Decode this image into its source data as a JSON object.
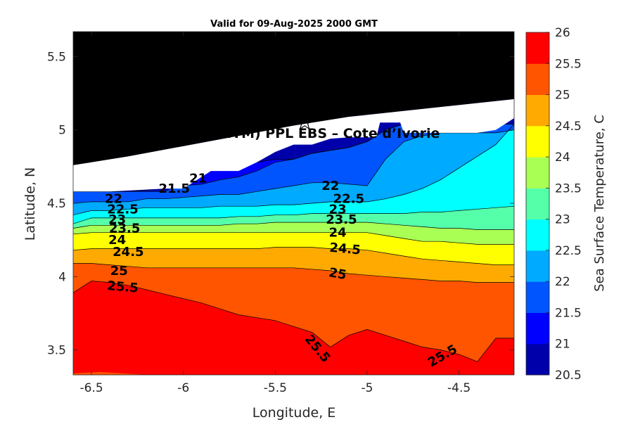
{
  "chart_data": {
    "type": "heatmap",
    "subtype": "filled-contour-map",
    "title": "Valid for 09-Aug-2025 2000 GMT",
    "xlabel": "Longitude, E",
    "ylabel": "Latitude, N",
    "xlim": [
      -6.6,
      -4.2
    ],
    "ylim": [
      3.33,
      5.67
    ],
    "x_ticks": [
      -6.5,
      -6,
      -5.5,
      -5,
      -4.5
    ],
    "x_tick_labels": [
      "-6.5",
      "-6",
      "-5.5",
      "-5",
      "-4.5"
    ],
    "y_ticks": [
      3.5,
      4,
      4.5,
      5,
      5.5
    ],
    "y_tick_labels": [
      "3.5",
      "4",
      "4.5",
      "5",
      "5.5"
    ],
    "colorbar": {
      "label": "Sea Surface Temperature, C",
      "levels": [
        20.5,
        21,
        21.5,
        22,
        22.5,
        23,
        23.5,
        24,
        24.5,
        25,
        25.5,
        26
      ],
      "tick_labels": [
        "20.5",
        "21",
        "21.5",
        "22",
        "22.5",
        "23",
        "23.5",
        "24",
        "24.5",
        "25",
        "25.5",
        "26"
      ],
      "colors": [
        "#0000aa",
        "#0000ff",
        "#0055ff",
        "#00aaff",
        "#00ffff",
        "#55ffaa",
        "#aaff55",
        "#ffff00",
        "#ffaa00",
        "#ff5500",
        "#ff0000"
      ]
    },
    "land_color": "#000000",
    "no_data_color": "#ffffff",
    "annotation": {
      "text": "A (ONHYM) PPL EBS  – Cote d’Ivorie",
      "lon": -5.32,
      "lat": 4.98
    },
    "marker": {
      "symbol": "star",
      "lon": -5.34,
      "lat": 5.05
    },
    "contour_labels": [
      {
        "text": "21",
        "lon": -5.92,
        "lat": 4.67,
        "angle": 0
      },
      {
        "text": "21.5",
        "lon": -6.05,
        "lat": 4.6,
        "angle": 0
      },
      {
        "text": "22",
        "lon": -6.38,
        "lat": 4.53,
        "angle": 0
      },
      {
        "text": "22",
        "lon": -5.2,
        "lat": 4.62,
        "angle": 0
      },
      {
        "text": "22.5",
        "lon": -6.33,
        "lat": 4.46,
        "angle": 0
      },
      {
        "text": "22.5",
        "lon": -5.1,
        "lat": 4.53,
        "angle": 0
      },
      {
        "text": "23",
        "lon": -6.36,
        "lat": 4.39,
        "angle": 0
      },
      {
        "text": "23",
        "lon": -5.16,
        "lat": 4.46,
        "angle": 0
      },
      {
        "text": "23.5",
        "lon": -6.32,
        "lat": 4.33,
        "angle": 0
      },
      {
        "text": "23.5",
        "lon": -5.14,
        "lat": 4.39,
        "angle": 0
      },
      {
        "text": "24",
        "lon": -6.36,
        "lat": 4.25,
        "angle": 0
      },
      {
        "text": "24",
        "lon": -5.16,
        "lat": 4.3,
        "angle": 0
      },
      {
        "text": "24.5",
        "lon": -6.3,
        "lat": 4.17,
        "angle": 0
      },
      {
        "text": "24.5",
        "lon": -5.12,
        "lat": 4.19,
        "angle": 5
      },
      {
        "text": "25",
        "lon": -6.35,
        "lat": 4.04,
        "angle": 0
      },
      {
        "text": "25",
        "lon": -5.16,
        "lat": 4.02,
        "angle": 10
      },
      {
        "text": "25.5",
        "lon": -6.33,
        "lat": 3.93,
        "angle": 5
      },
      {
        "text": "25.5",
        "lon": -5.27,
        "lat": 3.51,
        "angle": 50
      },
      {
        "text": "25.5",
        "lon": -4.59,
        "lat": 3.46,
        "angle": -30
      }
    ]
  }
}
